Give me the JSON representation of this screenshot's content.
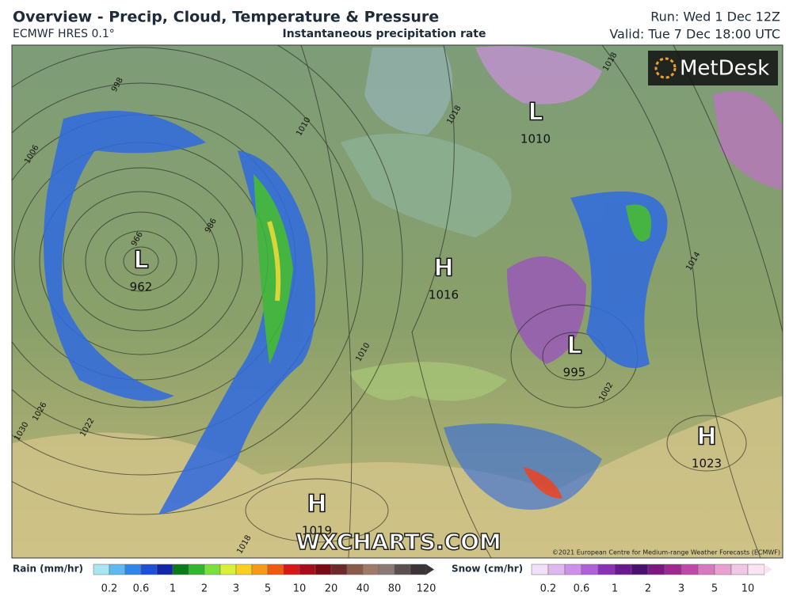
{
  "header": {
    "title": "Overview - Precip, Cloud, Temperature & Pressure",
    "model": "ECMWF HRES 0.1°",
    "subtitle": "Instantaneous precipitation rate",
    "run": "Run: Wed 1 Dec 12Z",
    "valid": "Valid: Tue 7 Dec 18:00 UTC"
  },
  "map": {
    "brand": "MetDesk",
    "watermark": "WXCHARTS.COM",
    "copyright": "©2021 European Centre for Medium-range Weather Forecasts (ECMWF)",
    "pressure_centers": [
      {
        "letter": "L",
        "value": 962
      },
      {
        "letter": "H",
        "value": 1016
      },
      {
        "letter": "L",
        "value": 995
      },
      {
        "letter": "L",
        "value": 1010
      },
      {
        "letter": "H",
        "value": 1023
      },
      {
        "letter": "H",
        "value": 1019
      }
    ],
    "isobar_labels": [
      966,
      986,
      998,
      1006,
      1010,
      1018,
      1018,
      1014,
      1026,
      1030,
      1002,
      1010,
      1018,
      1022
    ]
  },
  "legend": {
    "rain": {
      "title": "Rain (mm/hr)",
      "ticks": [
        0.2,
        0.6,
        1,
        2,
        3,
        5,
        10,
        20,
        40,
        80,
        120
      ],
      "colors": [
        "#a8e6f0",
        "#5fb8f0",
        "#2f86e8",
        "#1f4fd8",
        "#1226a8",
        "#0a7a1a",
        "#2fb82f",
        "#7be03a",
        "#d8f03a",
        "#f8d020",
        "#f89a18",
        "#f05a10",
        "#d81818",
        "#a80e1a",
        "#7a0a14",
        "#6e2a2a",
        "#8a5a4a",
        "#a07a68",
        "#8a7a74",
        "#5a5050",
        "#3a3438"
      ]
    },
    "snow": {
      "title": "Snow (cm/hr)",
      "ticks": [
        0.2,
        0.6,
        1,
        2,
        3,
        5,
        10
      ],
      "colors": [
        "#f0e0f8",
        "#e0b8f0",
        "#cc90e8",
        "#b060d8",
        "#8a30b8",
        "#6a1890",
        "#4a1070",
        "#7a1880",
        "#a02890",
        "#c048a8",
        "#d878c0",
        "#e8a0d0",
        "#f0c8e4",
        "#f8e4f2"
      ]
    }
  }
}
